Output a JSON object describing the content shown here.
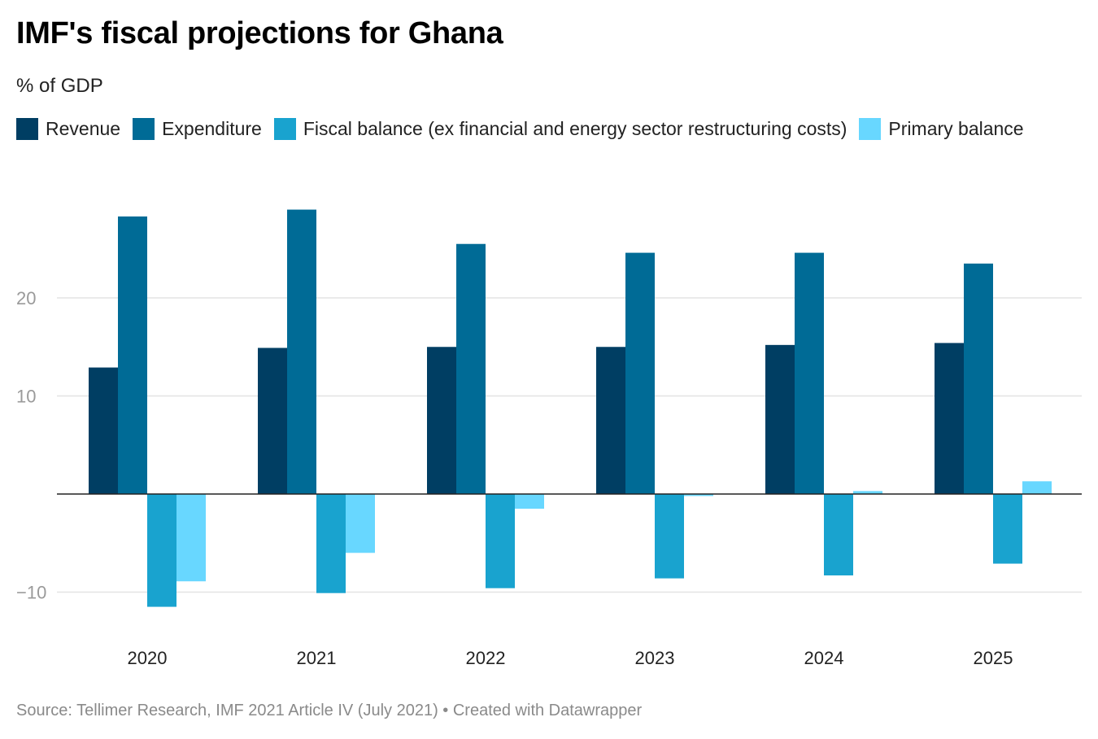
{
  "title": "IMF's fiscal projections for Ghana",
  "subtitle": "% of GDP",
  "footer": "Source: Tellimer Research, IMF 2021 Article IV (July 2021) • Created with Datawrapper",
  "chart_data": {
    "type": "bar",
    "title": "IMF's fiscal projections for Ghana",
    "subtitle": "% of GDP",
    "xlabel": "",
    "ylabel": "% of GDP",
    "categories": [
      "2020",
      "2021",
      "2022",
      "2023",
      "2024",
      "2025"
    ],
    "ylim": [
      -12,
      30
    ],
    "yticks": [
      20,
      10,
      -10
    ],
    "ytick_labels": [
      "20",
      "10",
      "−10"
    ],
    "grid": true,
    "legend_position": "top-left",
    "series": [
      {
        "name": "Revenue",
        "color": "#003e63",
        "values": [
          12.9,
          14.9,
          15.0,
          15.0,
          15.2,
          15.4
        ]
      },
      {
        "name": "Expenditure",
        "color": "#006b96",
        "values": [
          28.3,
          29.0,
          25.5,
          24.6,
          24.6,
          23.5
        ]
      },
      {
        "name": "Fiscal balance (ex financial and energy sector restructuring costs)",
        "color": "#19a3cf",
        "values": [
          -11.5,
          -10.1,
          -9.6,
          -8.6,
          -8.3,
          -7.1
        ]
      },
      {
        "name": "Primary balance",
        "color": "#68d7ff",
        "values": [
          -8.9,
          -6.0,
          -1.5,
          -0.2,
          0.3,
          1.3
        ]
      }
    ]
  }
}
